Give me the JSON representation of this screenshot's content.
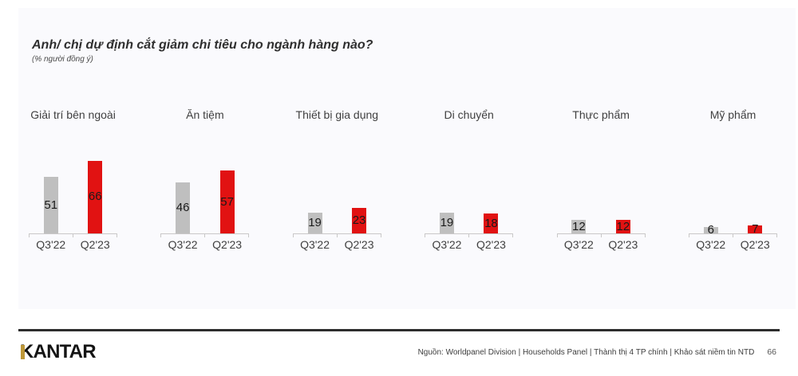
{
  "chart_data": {
    "type": "bar",
    "layout": "small-multiples",
    "title": "Anh/ chị dự định cắt giảm chi tiêu cho ngành hàng nào?",
    "subtitle": "(% người đồng ý)",
    "group_labels": [
      "Giải trí bên ngoài",
      "Ăn tiệm",
      "Thiết bị gia dụng",
      "Di chuyển",
      "Thực phẩm",
      "Mỹ phẩm"
    ],
    "x_tick_labels": [
      "Q3'22",
      "Q2'23"
    ],
    "series": [
      {
        "name": "Q3'22",
        "color": "#bfbfbf",
        "values": [
          51,
          46,
          19,
          19,
          12,
          6
        ]
      },
      {
        "name": "Q2'23",
        "color": "#e11212",
        "values": [
          66,
          57,
          23,
          18,
          12,
          7
        ]
      }
    ],
    "ylim": [
      0,
      100
    ],
    "grid": false,
    "legend": "none",
    "value_labels": "inside-center"
  },
  "colors": {
    "bar_gray": "#bfbfbf",
    "bar_red": "#e11212",
    "logo_gold": "#bd9738",
    "panel_bg": "#fafafd"
  },
  "footer": {
    "logo": "KANTAR",
    "source": "Nguồn: Worldpanel Division | Households Panel | Thành thị 4 TP chính | Khảo sát niềm tin NTD",
    "page_number": "66"
  }
}
